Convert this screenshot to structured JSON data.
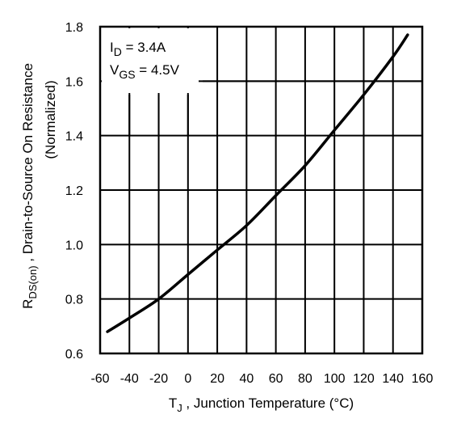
{
  "chart_data": {
    "type": "line",
    "x_title_main": "T",
    "x_title_sub": "J",
    "x_title_rest": " , Junction Temperature (°C)",
    "y_title_main": "R",
    "y_title_sub": "DS(on)",
    "y_title_rest": " , Drain-to-Source On Resistance",
    "y_title_line2": "(Normalized)",
    "xlim": [
      -60,
      160
    ],
    "ylim": [
      0.6,
      1.8
    ],
    "x_ticks": [
      -60,
      -40,
      -20,
      0,
      20,
      40,
      60,
      80,
      100,
      120,
      140,
      160
    ],
    "x_tick_labels": [
      "-60",
      "-40",
      "-20",
      "0",
      "20",
      "40",
      "60",
      "80",
      "100",
      "120",
      "140",
      "160"
    ],
    "y_ticks": [
      0.6,
      0.8,
      1.0,
      1.2,
      1.4,
      1.6,
      1.8
    ],
    "y_tick_labels": [
      "0.6",
      "0.8",
      "1.0",
      "1.2",
      "1.4",
      "1.6",
      "1.8"
    ],
    "grid": true,
    "annotations": {
      "line1_main": "I",
      "line1_sub": "D",
      "line1_rest": " = 3.4A",
      "line2_main": "V",
      "line2_sub": "GS",
      "line2_rest": " = 4.5V"
    },
    "series": [
      {
        "x": [
          -55,
          -40,
          -20,
          0,
          20,
          40,
          60,
          80,
          100,
          120,
          140,
          150
        ],
        "values": [
          0.68,
          0.73,
          0.8,
          0.89,
          0.98,
          1.07,
          1.18,
          1.29,
          1.42,
          1.55,
          1.69,
          1.77
        ]
      }
    ]
  }
}
